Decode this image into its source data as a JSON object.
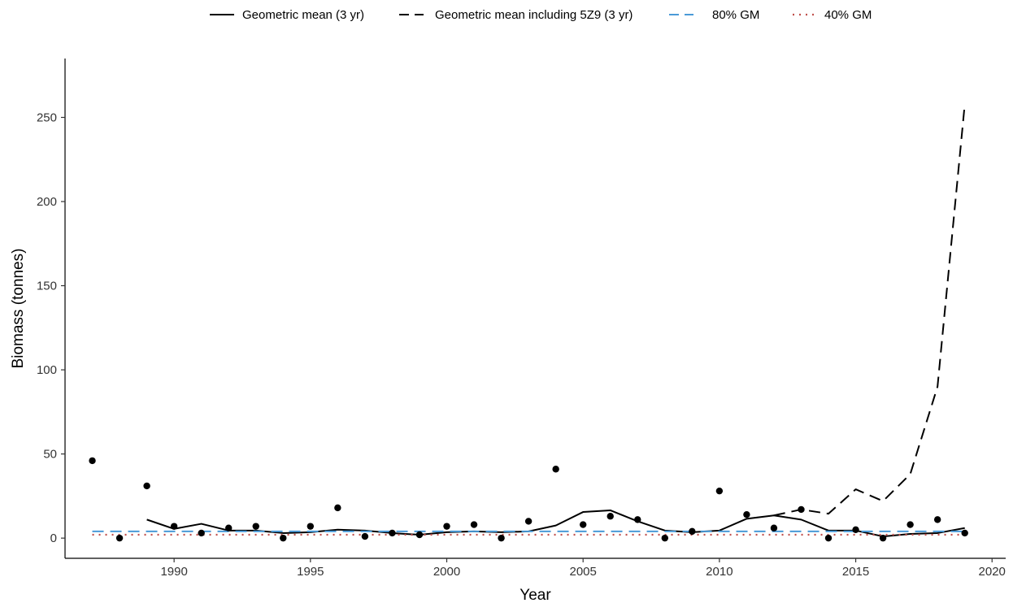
{
  "chart_data": {
    "type": "line",
    "title": "",
    "xlabel": "Year",
    "ylabel": "Biomass (tonnes)",
    "xlim": [
      1986,
      2020.5
    ],
    "ylim": [
      -12,
      285
    ],
    "x_ticks": [
      1990,
      1995,
      2000,
      2005,
      2010,
      2015,
      2020
    ],
    "y_ticks": [
      0,
      50,
      100,
      150,
      200,
      250
    ],
    "grid": false,
    "legend_position": "top",
    "legend": [
      {
        "label": "Geometric mean (3 yr)",
        "style": "solid",
        "color": "#000000"
      },
      {
        "label": "Geometric mean including 5Z9 (3 yr)",
        "style": "dashed",
        "color": "#000000"
      },
      {
        "label": "80% GM",
        "style": "dashed",
        "color": "#4a9ad8"
      },
      {
        "label": "40% GM",
        "style": "dotted",
        "color": "#c0504d"
      }
    ],
    "points": {
      "x": [
        1987,
        1988,
        1989,
        1990,
        1991,
        1992,
        1993,
        1994,
        1995,
        1996,
        1997,
        1998,
        1999,
        2000,
        2001,
        2002,
        2003,
        2004,
        2005,
        2006,
        2007,
        2008,
        2009,
        2010,
        2011,
        2012,
        2013,
        2014,
        2015,
        2016,
        2017,
        2018,
        2019
      ],
      "y": [
        46,
        0,
        31,
        7,
        3,
        6,
        7,
        0,
        7,
        18,
        1,
        3,
        2,
        7,
        8,
        0,
        10,
        41,
        8,
        13,
        11,
        0,
        4,
        28,
        14,
        6,
        17,
        0,
        5,
        0,
        8,
        11,
        3
      ]
    },
    "series": [
      {
        "name": "Geometric mean (3 yr)",
        "style": "solid",
        "color": "#000000",
        "x": [
          1989,
          1990,
          1991,
          1992,
          1993,
          1994,
          1995,
          1996,
          1997,
          1998,
          1999,
          2000,
          2001,
          2002,
          2003,
          2004,
          2005,
          2006,
          2007,
          2008,
          2009,
          2010,
          2011,
          2012,
          2013,
          2014,
          2015,
          2016,
          2017,
          2018,
          2019
        ],
        "values": [
          11,
          5.5,
          8.5,
          4.5,
          4.5,
          3,
          3.5,
          5,
          4.5,
          3,
          2,
          3.5,
          4,
          3.5,
          4,
          7.5,
          15.5,
          16.5,
          10,
          4.5,
          3.5,
          4.5,
          11.5,
          13.5,
          11,
          4.5,
          4.5,
          1,
          2.5,
          3,
          6
        ]
      },
      {
        "name": "Geometric mean including 5Z9 (3 yr)",
        "style": "dashed",
        "color": "#000000",
        "x": [
          2012,
          2013,
          2014,
          2015,
          2016,
          2017,
          2018,
          2019
        ],
        "values": [
          13.5,
          17,
          14.5,
          29,
          22,
          38,
          90,
          258
        ]
      },
      {
        "name": "80% GM",
        "style": "dashed",
        "color": "#4a9ad8",
        "x": [
          1987,
          2019
        ],
        "values": [
          4,
          4
        ]
      },
      {
        "name": "40% GM",
        "style": "dotted",
        "color": "#c0504d",
        "x": [
          1987,
          2019
        ],
        "values": [
          2,
          2
        ]
      }
    ]
  }
}
